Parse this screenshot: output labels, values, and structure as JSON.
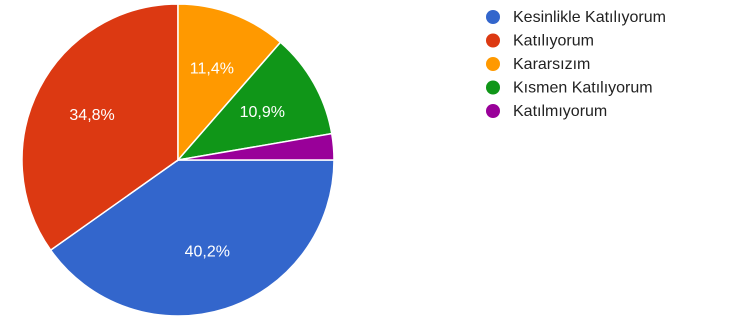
{
  "chart_data": {
    "type": "pie",
    "slices": [
      {
        "name": "Kesinlikle Katılıyorum",
        "value": 40.2,
        "label": "40,2%",
        "color": "#3366cc"
      },
      {
        "name": "Katılıyorum",
        "value": 34.8,
        "label": "34,8%",
        "color": "#dc3912"
      },
      {
        "name": "Kararsızım",
        "value": 11.4,
        "label": "11,4%",
        "color": "#ff9900"
      },
      {
        "name": "Kısmen Katılıyorum",
        "value": 10.9,
        "label": "10,9%",
        "color": "#109618"
      },
      {
        "name": "Katılmıyorum",
        "value": 2.7,
        "label": "",
        "color": "#990099"
      }
    ],
    "legend_position": "right"
  }
}
